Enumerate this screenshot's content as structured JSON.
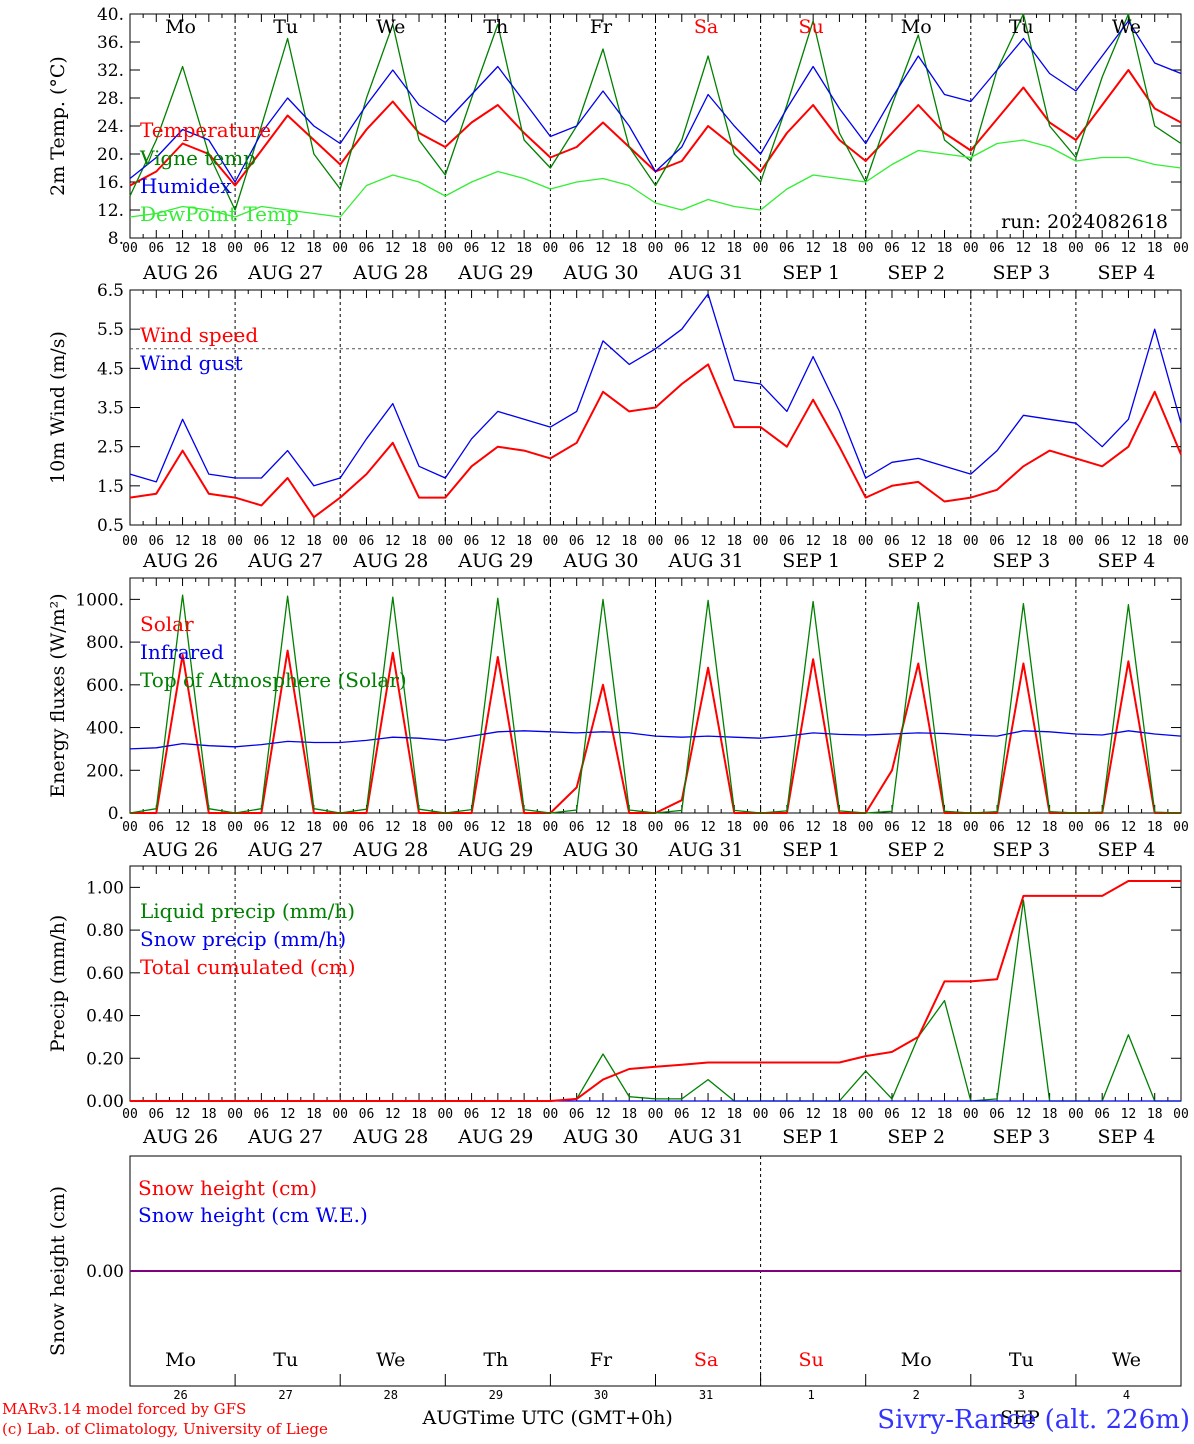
{
  "day_labels": [
    "Mo",
    "Tu",
    "We",
    "Th",
    "Fr",
    "Sa",
    "Su",
    "Mo",
    "Tu",
    "We"
  ],
  "weekend_color": "#ff0000",
  "normal_color": "#000000",
  "hour_ticks": [
    "00",
    "06",
    "12",
    "18"
  ],
  "date_labels": [
    "AUG 26",
    "AUG 27",
    "AUG 28",
    "AUG 29",
    "AUG 30",
    "AUG 31",
    "SEP  1",
    "SEP  2",
    "SEP  3",
    "SEP  4"
  ],
  "bottom_day_numbers": [
    "26",
    "27",
    "28",
    "29",
    "30",
    "31",
    "1",
    "2",
    "3",
    "4"
  ],
  "bottom_month_labels": [
    "AUG",
    "SEP"
  ],
  "footer": {
    "model": "MARv3.14 model forced by GFS",
    "copyright": "(c) Lab. of Climatology, University of Liege",
    "xlabel": "Time UTC (GMT+0h)",
    "station": "Sivry-Rance (alt. 226m)"
  },
  "colors": {
    "red": "#ff0000",
    "blue": "#0000ee",
    "green": "#008000",
    "light_green": "#33ee33",
    "purple": "#800080"
  },
  "chart_data": [
    {
      "type": "line",
      "ylabel": "2m Temp. (°C)",
      "ylim": [
        8,
        40
      ],
      "yticks": [
        "8.",
        "12.",
        "16.",
        "20.",
        "24.",
        "28.",
        "32.",
        "36.",
        "40."
      ],
      "annotation": "run: 2024082618",
      "x_unit": "hours since 2024-08-26 00 UTC",
      "x": [
        0,
        6,
        12,
        18,
        24,
        30,
        36,
        42,
        48,
        54,
        60,
        66,
        72,
        78,
        84,
        90,
        96,
        102,
        108,
        114,
        120,
        126,
        132,
        138,
        144,
        150,
        156,
        162,
        168,
        174,
        180,
        186,
        192,
        198,
        204,
        210,
        216,
        222,
        228,
        234,
        240
      ],
      "series": [
        {
          "name": "Temperature",
          "color": "#ff0000",
          "values": [
            15.5,
            17.5,
            21.5,
            20.0,
            15.5,
            20.5,
            25.5,
            22.0,
            18.5,
            23.5,
            27.5,
            23.0,
            21.0,
            24.5,
            27.0,
            23.0,
            19.5,
            21.0,
            24.5,
            21.0,
            17.5,
            19.0,
            24.0,
            21.0,
            17.5,
            23.0,
            27.0,
            22.0,
            19.0,
            23.0,
            27.0,
            23.0,
            20.5,
            25.0,
            29.5,
            24.5,
            22.0,
            27.0,
            32.0,
            26.5,
            24.5
          ]
        },
        {
          "name": "Vigne temp",
          "color": "#008000",
          "values": [
            14.0,
            22.0,
            32.5,
            20.0,
            12.0,
            24.0,
            36.5,
            20.0,
            15.0,
            28.0,
            38.5,
            22.0,
            17.0,
            28.0,
            38.5,
            22.0,
            18.0,
            24.0,
            35.0,
            21.0,
            15.5,
            22.0,
            34.0,
            20.0,
            16.0,
            27.0,
            39.0,
            23.0,
            16.0,
            27.0,
            37.0,
            22.0,
            19.0,
            32.0,
            40.0,
            24.0,
            19.5,
            31.0,
            40.0,
            24.0,
            21.5
          ]
        },
        {
          "name": "Humidex",
          "color": "#0000ee",
          "values": [
            16.5,
            19.5,
            23.5,
            22.0,
            16.0,
            23.0,
            28.0,
            24.0,
            21.5,
            27.0,
            32.0,
            27.0,
            24.5,
            28.5,
            32.5,
            27.5,
            22.5,
            24.0,
            29.0,
            24.0,
            17.5,
            21.0,
            28.5,
            24.0,
            20.0,
            26.5,
            32.5,
            26.5,
            21.5,
            28.0,
            34.0,
            28.5,
            27.5,
            32.0,
            36.5,
            31.5,
            29.0,
            34.0,
            39.0,
            33.0,
            31.5
          ]
        },
        {
          "name": "DewPoint Temp",
          "color": "#33ee33",
          "values": [
            11.0,
            11.5,
            12.5,
            12.0,
            11.0,
            12.5,
            12.0,
            11.5,
            11.0,
            15.5,
            17.0,
            16.0,
            14.0,
            16.0,
            17.5,
            16.5,
            15.0,
            16.0,
            16.5,
            15.5,
            13.0,
            12.0,
            13.5,
            12.5,
            12.0,
            15.0,
            17.0,
            16.5,
            16.0,
            18.5,
            20.5,
            20.0,
            19.5,
            21.5,
            22.0,
            21.0,
            19.0,
            19.5,
            19.5,
            18.5,
            18.0
          ]
        }
      ]
    },
    {
      "type": "line",
      "ylabel": "10m Wind (m/s)",
      "ylim": [
        0.5,
        6.5
      ],
      "yticks": [
        "0.5",
        "1.5",
        "2.5",
        "3.5",
        "4.5",
        "5.5",
        "6.5"
      ],
      "reference_line": 5.0,
      "x": [
        0,
        6,
        12,
        18,
        24,
        30,
        36,
        42,
        48,
        54,
        60,
        66,
        72,
        78,
        84,
        90,
        96,
        102,
        108,
        114,
        120,
        126,
        132,
        138,
        144,
        150,
        156,
        162,
        168,
        174,
        180,
        186,
        192,
        198,
        204,
        210,
        216,
        222,
        228,
        234,
        240
      ],
      "series": [
        {
          "name": "Wind speed",
          "color": "#ff0000",
          "values": [
            1.2,
            1.3,
            2.4,
            1.3,
            1.2,
            1.0,
            1.7,
            0.7,
            1.2,
            1.8,
            2.6,
            1.2,
            1.2,
            2.0,
            2.5,
            2.4,
            2.2,
            2.6,
            3.9,
            3.4,
            3.5,
            4.1,
            4.6,
            3.0,
            3.0,
            2.5,
            3.7,
            2.5,
            1.2,
            1.5,
            1.6,
            1.1,
            1.2,
            1.4,
            2.0,
            2.4,
            2.2,
            2.0,
            2.5,
            3.9,
            2.3
          ]
        },
        {
          "name": "Wind gust",
          "color": "#0000ee",
          "values": [
            1.8,
            1.6,
            3.2,
            1.8,
            1.7,
            1.7,
            2.4,
            1.5,
            1.7,
            2.7,
            3.6,
            2.0,
            1.7,
            2.7,
            3.4,
            3.2,
            3.0,
            3.4,
            5.2,
            4.6,
            5.0,
            5.5,
            6.4,
            4.2,
            4.1,
            3.4,
            4.8,
            3.4,
            1.7,
            2.1,
            2.2,
            2.0,
            1.8,
            2.4,
            3.3,
            3.2,
            3.1,
            2.5,
            3.2,
            5.5,
            3.1
          ]
        }
      ]
    },
    {
      "type": "line",
      "ylabel": "Energy fluxes (W/m²)",
      "ylim": [
        0,
        1100
      ],
      "yticks": [
        "0.",
        "200.",
        "400.",
        "600.",
        "800.",
        "1000."
      ],
      "x": [
        0,
        6,
        12,
        18,
        24,
        30,
        36,
        42,
        48,
        54,
        60,
        66,
        72,
        78,
        84,
        90,
        96,
        102,
        108,
        114,
        120,
        126,
        132,
        138,
        144,
        150,
        156,
        162,
        168,
        174,
        180,
        186,
        192,
        198,
        204,
        210,
        216,
        222,
        228,
        234,
        240
      ],
      "series": [
        {
          "name": "Solar",
          "color": "#ff0000",
          "values": [
            0,
            0,
            740,
            0,
            0,
            0,
            760,
            0,
            0,
            0,
            750,
            0,
            0,
            0,
            730,
            0,
            0,
            120,
            600,
            0,
            0,
            60,
            680,
            0,
            0,
            0,
            720,
            0,
            0,
            200,
            700,
            0,
            0,
            0,
            700,
            0,
            0,
            0,
            710,
            0,
            0
          ]
        },
        {
          "name": "Infrared",
          "color": "#0000ee",
          "values": [
            300,
            305,
            325,
            315,
            310,
            320,
            335,
            330,
            330,
            340,
            355,
            350,
            340,
            360,
            380,
            385,
            380,
            375,
            380,
            375,
            360,
            355,
            360,
            355,
            350,
            360,
            375,
            368,
            365,
            370,
            375,
            372,
            365,
            360,
            385,
            380,
            370,
            365,
            385,
            370,
            360
          ]
        },
        {
          "name": "Top of Atmosphere (Solar)",
          "color": "#008000",
          "values": [
            0,
            20,
            1020,
            20,
            0,
            20,
            1015,
            20,
            0,
            18,
            1010,
            18,
            0,
            16,
            1005,
            16,
            0,
            14,
            1000,
            14,
            0,
            12,
            995,
            12,
            0,
            10,
            990,
            10,
            0,
            8,
            985,
            8,
            0,
            6,
            980,
            6,
            0,
            4,
            975,
            4,
            0
          ]
        }
      ]
    },
    {
      "type": "line",
      "ylabel": "Precip (mm/h)",
      "ylim": [
        0,
        1.1
      ],
      "yticks": [
        "0.00",
        "0.20",
        "0.40",
        "0.60",
        "0.80",
        "1.00"
      ],
      "x": [
        0,
        6,
        12,
        18,
        24,
        30,
        36,
        42,
        48,
        54,
        60,
        66,
        72,
        78,
        84,
        90,
        96,
        102,
        108,
        114,
        120,
        126,
        132,
        138,
        144,
        150,
        156,
        162,
        168,
        174,
        180,
        186,
        192,
        198,
        204,
        210,
        216,
        222,
        228,
        234,
        240
      ],
      "series": [
        {
          "name": "Liquid precip (mm/h)",
          "color": "#008000",
          "values": [
            0,
            0,
            0,
            0,
            0,
            0,
            0,
            0,
            0,
            0,
            0,
            0,
            0,
            0,
            0,
            0,
            0,
            0.01,
            0.22,
            0.02,
            0.01,
            0.01,
            0.1,
            0,
            0,
            0,
            0,
            0,
            0.14,
            0.01,
            0.3,
            0.47,
            0,
            0.01,
            0.94,
            0,
            0,
            0,
            0.31,
            0,
            0
          ]
        },
        {
          "name": "Snow precip (mm/h)",
          "color": "#0000ee",
          "values": [
            0,
            0,
            0,
            0,
            0,
            0,
            0,
            0,
            0,
            0,
            0,
            0,
            0,
            0,
            0,
            0,
            0,
            0,
            0,
            0,
            0,
            0,
            0,
            0,
            0,
            0,
            0,
            0,
            0,
            0,
            0,
            0,
            0,
            0,
            0,
            0,
            0,
            0,
            0,
            0,
            0
          ]
        },
        {
          "name": "Total cumulated (cm)",
          "color": "#ff0000",
          "values": [
            0,
            0,
            0,
            0,
            0,
            0,
            0,
            0,
            0,
            0,
            0,
            0,
            0,
            0,
            0,
            0,
            0,
            0.01,
            0.1,
            0.15,
            0.16,
            0.17,
            0.18,
            0.18,
            0.18,
            0.18,
            0.18,
            0.18,
            0.21,
            0.23,
            0.3,
            0.56,
            0.56,
            0.57,
            0.96,
            0.96,
            0.96,
            0.96,
            1.03,
            1.03,
            1.03
          ]
        }
      ]
    },
    {
      "type": "line",
      "ylabel": "Snow height (cm)",
      "ylim": [
        -0.5,
        0.5
      ],
      "yticks": [
        "0.00"
      ],
      "x": [
        0,
        240
      ],
      "series": [
        {
          "name": "Snow height (cm)",
          "color": "#ff0000",
          "values": [
            0,
            0
          ]
        },
        {
          "name": "Snow height (cm W.E.)",
          "color": "#0000ee",
          "values": [
            0,
            0
          ]
        }
      ]
    }
  ]
}
